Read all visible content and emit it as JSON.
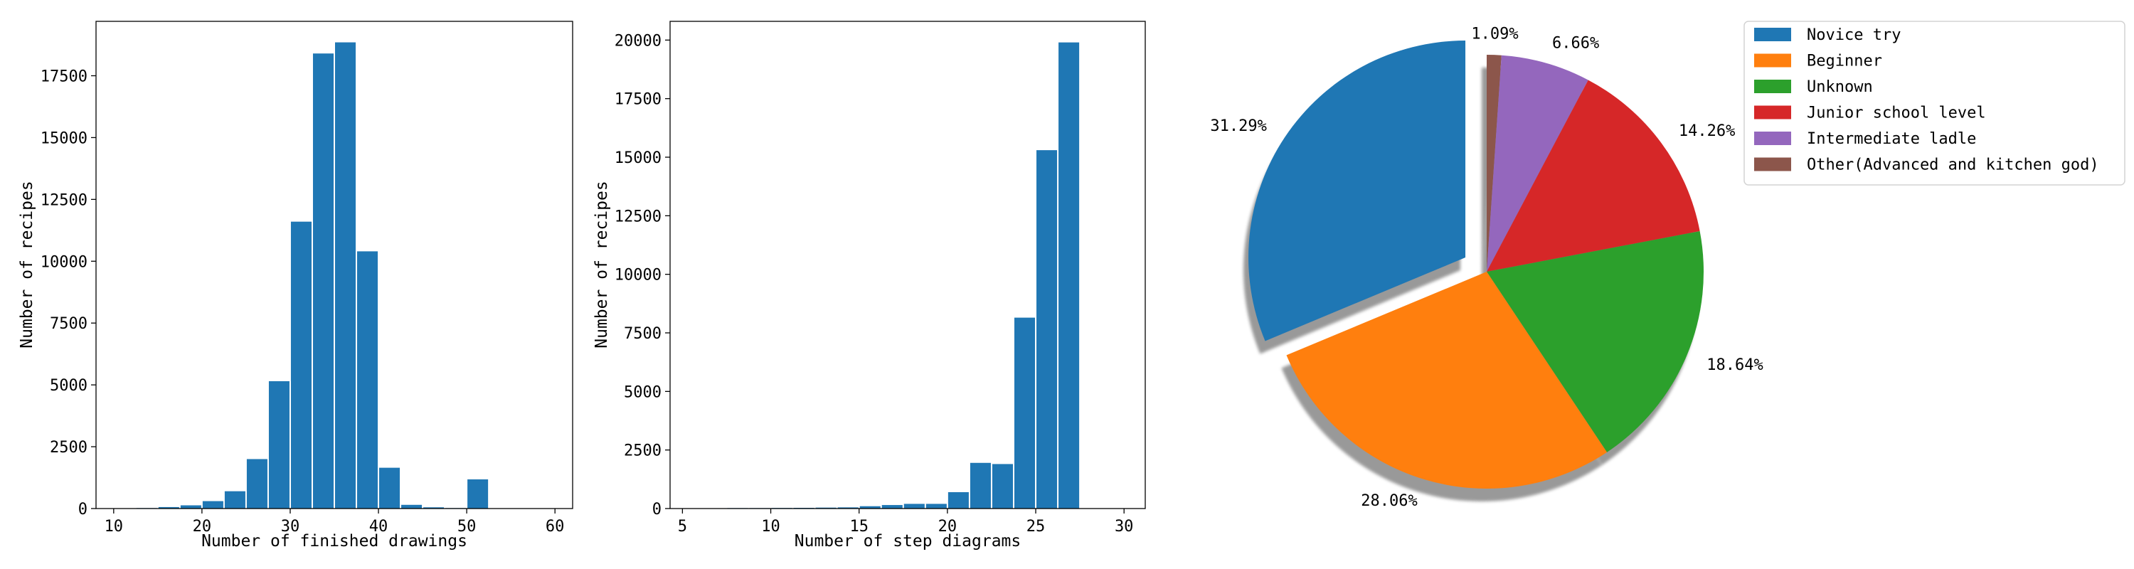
{
  "chart_data": [
    {
      "type": "bar",
      "xlabel": "Number of finished drawings",
      "ylabel": "Number of recipes",
      "xlim": [
        8,
        62
      ],
      "ylim": [
        0,
        19700
      ],
      "xticks": [
        10,
        20,
        30,
        40,
        50,
        60
      ],
      "yticks": [
        0,
        2500,
        5000,
        7500,
        10000,
        12500,
        15000,
        17500
      ],
      "bin_width": 2.5,
      "color": "#1f77b4",
      "bins": [
        {
          "start": 10.0,
          "value": 10
        },
        {
          "start": 12.5,
          "value": 20
        },
        {
          "start": 15.0,
          "value": 60
        },
        {
          "start": 17.5,
          "value": 130
        },
        {
          "start": 20.0,
          "value": 300
        },
        {
          "start": 22.5,
          "value": 700
        },
        {
          "start": 25.0,
          "value": 2000
        },
        {
          "start": 27.5,
          "value": 5150
        },
        {
          "start": 30.0,
          "value": 11600
        },
        {
          "start": 32.5,
          "value": 18400
        },
        {
          "start": 35.0,
          "value": 18850
        },
        {
          "start": 37.5,
          "value": 10400
        },
        {
          "start": 40.0,
          "value": 1650
        },
        {
          "start": 42.5,
          "value": 150
        },
        {
          "start": 45.0,
          "value": 50
        },
        {
          "start": 47.5,
          "value": 20
        },
        {
          "start": 50.0,
          "value": 1180
        },
        {
          "start": 52.5,
          "value": 10
        },
        {
          "start": 57.5,
          "value": 5
        }
      ]
    },
    {
      "type": "bar",
      "xlabel": "Number of step diagrams",
      "ylabel": "Number of recipes",
      "xlim": [
        4.3,
        31.2
      ],
      "ylim": [
        0,
        20800
      ],
      "xticks": [
        5,
        10,
        15,
        20,
        25,
        30
      ],
      "yticks": [
        0,
        2500,
        5000,
        7500,
        10000,
        12500,
        15000,
        17500,
        20000
      ],
      "bin_width": 1.25,
      "color": "#1f77b4",
      "bins": [
        {
          "start": 5.0,
          "value": 10
        },
        {
          "start": 6.25,
          "value": 10
        },
        {
          "start": 7.5,
          "value": 20
        },
        {
          "start": 8.75,
          "value": 20
        },
        {
          "start": 10.0,
          "value": 25
        },
        {
          "start": 11.25,
          "value": 30
        },
        {
          "start": 12.5,
          "value": 40
        },
        {
          "start": 13.75,
          "value": 50
        },
        {
          "start": 15.0,
          "value": 100
        },
        {
          "start": 16.25,
          "value": 150
        },
        {
          "start": 17.5,
          "value": 200
        },
        {
          "start": 18.75,
          "value": 200
        },
        {
          "start": 20.0,
          "value": 700
        },
        {
          "start": 21.25,
          "value": 1950
        },
        {
          "start": 22.5,
          "value": 1900
        },
        {
          "start": 23.75,
          "value": 8150
        },
        {
          "start": 25.0,
          "value": 15300
        },
        {
          "start": 26.25,
          "value": 19900
        }
      ]
    },
    {
      "type": "pie",
      "start_angle_deg": 90,
      "direction": "clockwise",
      "shadow": true,
      "legend_position": "upper-right",
      "slices": [
        {
          "label": "Other(Advanced and kitchen god)",
          "value": 1.09,
          "pct_label": "1.09%",
          "color": "#8c564b",
          "explode": 0
        },
        {
          "label": "Intermediate ladle",
          "value": 6.66,
          "pct_label": "6.66%",
          "color": "#9467bd",
          "explode": 0
        },
        {
          "label": "Junior school level",
          "value": 14.26,
          "pct_label": "14.26%",
          "color": "#d62728",
          "explode": 0
        },
        {
          "label": "Unknown",
          "value": 18.64,
          "pct_label": "18.64%",
          "color": "#2ca02c",
          "explode": 0
        },
        {
          "label": "Beginner",
          "value": 28.06,
          "pct_label": "28.06%",
          "color": "#ff7f0e",
          "explode": 0
        },
        {
          "label": "Novice try",
          "value": 31.29,
          "pct_label": "31.29%",
          "color": "#1f77b4",
          "explode": 1
        }
      ],
      "legend_order": [
        "Novice try",
        "Beginner",
        "Unknown",
        "Junior school level",
        "Intermediate ladle",
        "Other(Advanced and kitchen god)"
      ]
    }
  ]
}
